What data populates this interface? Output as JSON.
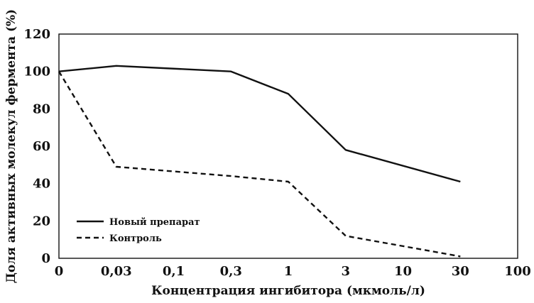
{
  "chart_data": {
    "type": "line",
    "xlabel": "Концентрация ингибитора (мкмоль/л)",
    "ylabel": "Доля активных молекул фермента (%)",
    "categories": [
      "0",
      "0,03",
      "0,1",
      "0,3",
      "1",
      "3",
      "10",
      "30",
      "100"
    ],
    "yticks": [
      "0",
      "20",
      "40",
      "60",
      "80",
      "100",
      "120"
    ],
    "ylim": [
      0,
      120
    ],
    "grid": false,
    "legend_position": "bottom-left",
    "series": [
      {
        "name": "Новый препарат",
        "style": "solid",
        "color": "#111111",
        "points": [
          {
            "x": "0",
            "y": 100
          },
          {
            "x": "0,03",
            "y": 103
          },
          {
            "x": "0,3",
            "y": 100
          },
          {
            "x": "1",
            "y": 88
          },
          {
            "x": "3",
            "y": 58
          },
          {
            "x": "30",
            "y": 41
          }
        ]
      },
      {
        "name": "Контроль",
        "style": "dashed",
        "color": "#111111",
        "points": [
          {
            "x": "0",
            "y": 100
          },
          {
            "x": "0,03",
            "y": 49
          },
          {
            "x": "0,3",
            "y": 44
          },
          {
            "x": "1",
            "y": 41
          },
          {
            "x": "3",
            "y": 12
          },
          {
            "x": "30",
            "y": 1
          }
        ]
      }
    ]
  }
}
